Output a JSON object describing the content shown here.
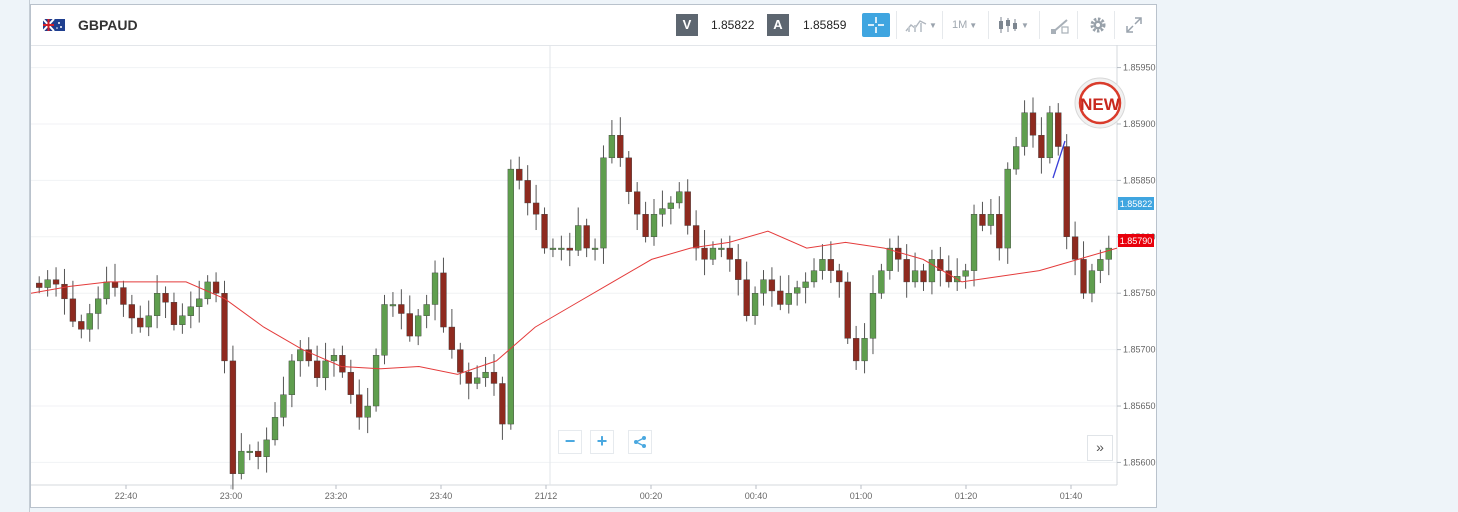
{
  "header": {
    "symbol": "GBPAUD",
    "sell_label": "V",
    "sell_price": "1.85822",
    "buy_label": "A",
    "buy_price": "1.85859",
    "timeframe": "1M"
  },
  "badge": {
    "text": "NEW"
  },
  "colors": {
    "up": "#5f9e4e",
    "down": "#8e2a1f",
    "ma": "#e43b3b",
    "sell_box": "#5d6670",
    "buy_box": "#5d6670",
    "crosshair_btn": "#3fa5e0",
    "price_label": "#3fa5e0",
    "ma_label": "#e8000b",
    "trend_line": "#3a3fd8"
  },
  "icons": [
    "flag-gb-au-icon",
    "crosshair-icon",
    "indicator-icon",
    "chevron-down-icon",
    "candlestick-icon",
    "drawing-tool-icon",
    "gear-icon",
    "expand-icon",
    "zoom-out-icon",
    "zoom-in-icon",
    "share-icon",
    "chevrons-right-icon"
  ],
  "chart_data": {
    "type": "candlestick",
    "ylim": [
      1.8558,
      1.8597
    ],
    "y_ticks": [
      "1.85950",
      "1.85900",
      "1.85850",
      "1.85800",
      "1.85750",
      "1.85700",
      "1.85650",
      "1.85600"
    ],
    "x_ticks": [
      "22:40",
      "23:00",
      "23:20",
      "23:40",
      "21/12",
      "00:20",
      "00:40",
      "01:00",
      "01:20",
      "01:40"
    ],
    "current_price_label": "1.85822",
    "ma_label": "1.85790",
    "ma_line": [
      1.8575,
      1.85756,
      1.8576,
      1.8576,
      1.8576,
      1.85745,
      1.8572,
      1.857,
      1.85685,
      1.85683,
      1.85685,
      1.85678,
      1.8569,
      1.8572,
      1.8574,
      1.8576,
      1.8578,
      1.8579,
      1.85795,
      1.85805,
      1.8579,
      1.85795,
      1.8579,
      1.8578,
      1.8576,
      1.85765,
      1.8577,
      1.8578,
      1.8579
    ],
    "candles": [
      1.85755,
      1.85762,
      1.85758,
      1.85745,
      1.85725,
      1.85718,
      1.85732,
      1.85745,
      1.8576,
      1.85755,
      1.8574,
      1.85728,
      1.8572,
      1.8573,
      1.8575,
      1.85742,
      1.85722,
      1.8573,
      1.85738,
      1.85745,
      1.8576,
      1.8575,
      1.8569,
      1.8559,
      1.8561,
      1.8561,
      1.85605,
      1.8562,
      1.8564,
      1.8566,
      1.8569,
      1.857,
      1.8569,
      1.85675,
      1.8569,
      1.85695,
      1.8568,
      1.8566,
      1.8564,
      1.8565,
      1.85695,
      1.8574,
      1.8574,
      1.85732,
      1.85712,
      1.8573,
      1.8574,
      1.85768,
      1.8572,
      1.857,
      1.8568,
      1.8567,
      1.85675,
      1.8568,
      1.8567,
      1.85634,
      1.8586,
      1.8585,
      1.8583,
      1.8582,
      1.8579,
      1.8579,
      1.8579,
      1.85788,
      1.8581,
      1.8579,
      1.8579,
      1.8587,
      1.8589,
      1.8587,
      1.8584,
      1.8582,
      1.858,
      1.8582,
      1.85825,
      1.8583,
      1.8584,
      1.8581,
      1.8579,
      1.8578,
      1.8579,
      1.8579,
      1.8578,
      1.85762,
      1.8573,
      1.8575,
      1.85762,
      1.85752,
      1.8574,
      1.8575,
      1.85755,
      1.8576,
      1.8577,
      1.8578,
      1.8577,
      1.8576,
      1.8571,
      1.8569,
      1.8571,
      1.8575,
      1.8577,
      1.8579,
      1.8578,
      1.8576,
      1.8577,
      1.8576,
      1.8578,
      1.8577,
      1.8576,
      1.85765,
      1.8577,
      1.8582,
      1.8581,
      1.8582,
      1.8579,
      1.8586,
      1.8588,
      1.8591,
      1.8589,
      1.8587,
      1.8591,
      1.8588,
      1.858,
      1.8578,
      1.8575,
      1.8577,
      1.8578,
      1.8579
    ]
  }
}
